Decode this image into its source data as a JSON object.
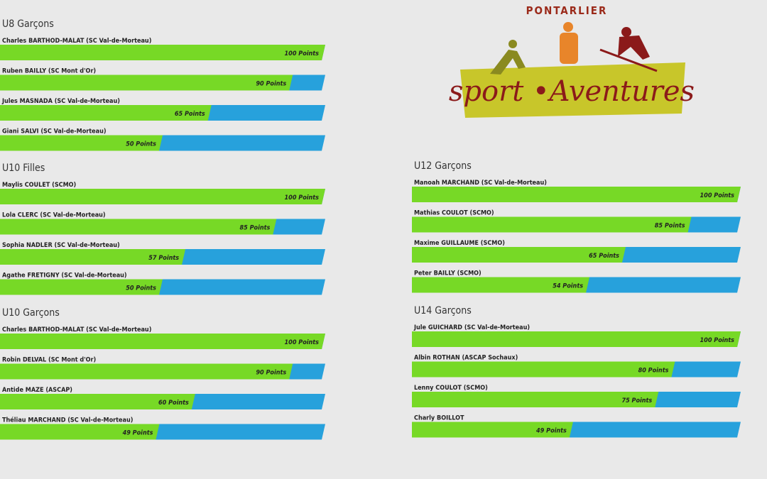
{
  "logo": {
    "top": "PONTARLIER",
    "main": "sport •Aventures"
  },
  "sections": [
    {
      "title": "U8 Garçons",
      "entries": [
        {
          "name": "Charles BARTHOD-MALAT (SC Val-de-Morteau)",
          "points": 100,
          "points_label": "100 Points"
        },
        {
          "name": "Ruben BAILLY (SC Mont d'Or)",
          "points": 90,
          "points_label": "90 Points"
        },
        {
          "name": "Jules MASNADA (SC Val-de-Morteau)",
          "points": 65,
          "points_label": "65 Points"
        },
        {
          "name": "Giani SALVI (SC Val-de-Morteau)",
          "points": 50,
          "points_label": "50 Points"
        }
      ]
    },
    {
      "title": "U10 Filles",
      "entries": [
        {
          "name": "Maylis COULET (SCMO)",
          "points": 100,
          "points_label": "100 Points"
        },
        {
          "name": "Lola CLERC (SC Val-de-Morteau)",
          "points": 85,
          "points_label": "85 Points"
        },
        {
          "name": "Sophia NADLER (SC Val-de-Morteau)",
          "points": 57,
          "points_label": "57 Points"
        },
        {
          "name": "Agathe FRETIGNY (SC Val-de-Morteau)",
          "points": 50,
          "points_label": "50 Points"
        }
      ]
    },
    {
      "title": "U10 Garçons",
      "entries": [
        {
          "name": "Charles BARTHOD-MALAT (SC Val-de-Morteau)",
          "points": 100,
          "points_label": "100 Points"
        },
        {
          "name": "Robin DELVAL (SC Mont d'Or)",
          "points": 90,
          "points_label": "90 Points"
        },
        {
          "name": "Antide MAZE (ASCAP)",
          "points": 60,
          "points_label": "60 Points"
        },
        {
          "name": "Théliau MARCHAND (SC Val-de-Morteau)",
          "points": 49,
          "points_label": "49 Points"
        }
      ]
    },
    {
      "title": "U12 Garçons",
      "entries": [
        {
          "name": "Manoah MARCHAND (SC Val-de-Morteau)",
          "points": 100,
          "points_label": "100 Points"
        },
        {
          "name": "Mathias COULOT (SCMO)",
          "points": 85,
          "points_label": "85 Points"
        },
        {
          "name": "Maxime GUILLAUME (SCMO)",
          "points": 65,
          "points_label": "65 Points"
        },
        {
          "name": "Peter BAILLY (SCMO)",
          "points": 54,
          "points_label": "54 Points"
        }
      ]
    },
    {
      "title": "U14 Garçons",
      "entries": [
        {
          "name": "Jule GUICHARD (SC Val-de-Morteau)",
          "points": 100,
          "points_label": "100 Points"
        },
        {
          "name": "Albin ROTHAN (ASCAP Sochaux)",
          "points": 80,
          "points_label": "80 Points"
        },
        {
          "name": "Lenny COULOT (SCMO)",
          "points": 75,
          "points_label": "75 Points"
        },
        {
          "name": "Charly BOILLOT",
          "points": 49,
          "points_label": "49 Points"
        }
      ]
    }
  ]
}
